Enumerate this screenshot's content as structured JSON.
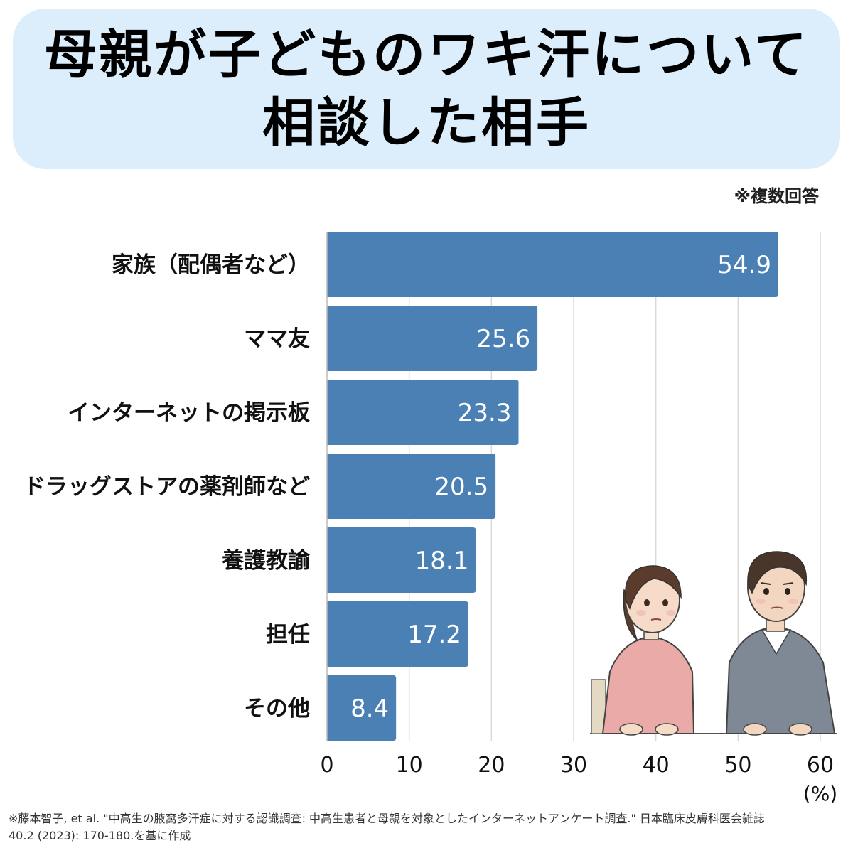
{
  "title": {
    "line1": "母親が子どものワキ汗について",
    "line2": "相談した相手"
  },
  "note": "※複数回答",
  "colors": {
    "bar": "#4a80b4",
    "title_bg": "#dceefb",
    "grid": "#d9d9d9"
  },
  "chart_data": {
    "type": "bar",
    "orientation": "horizontal",
    "categories": [
      "家族（配偶者など）",
      "ママ友",
      "インターネットの掲示板",
      "ドラッグストアの薬剤師など",
      "養護教諭",
      "担任",
      "その他"
    ],
    "values": [
      54.9,
      25.6,
      23.3,
      20.5,
      18.1,
      17.2,
      8.4
    ],
    "value_labels": [
      "54.9",
      "25.6",
      "23.3",
      "20.5",
      "18.1",
      "17.2",
      "8.4"
    ],
    "xlim": [
      0,
      60
    ],
    "xticks": [
      "0",
      "10",
      "20",
      "30",
      "40",
      "50",
      "60"
    ],
    "xunit": "(%)",
    "grid": true
  },
  "source": {
    "line1": "※藤本智子, et al. \"中高生の腋窩多汗症に対する認識調査: 中高生患者と母親を対象としたインターネットアンケート調査.\" 日本臨床皮膚科医会雑誌",
    "line2": "40.2 (2023): 170-180.を基に作成"
  }
}
